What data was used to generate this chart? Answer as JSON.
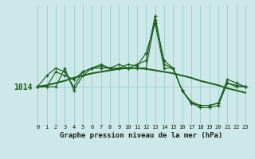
{
  "title": "Graphe pression niveau de la mer (hPa)",
  "bg_color": "#cce8e8",
  "grid_color": "#99cccc",
  "line_color": "#1a5c1a",
  "ylabel_value": 1014,
  "x_ticks": [
    0,
    1,
    2,
    3,
    4,
    5,
    6,
    7,
    8,
    9,
    10,
    11,
    12,
    13,
    14,
    15,
    16,
    17,
    18,
    19,
    20,
    21,
    22,
    23
  ],
  "ylim": [
    1009.0,
    1025.0
  ],
  "series": [
    [
      1014.0,
      1015.5,
      1016.5,
      1016.0,
      1014.0,
      1016.0,
      1016.5,
      1016.8,
      1016.5,
      1016.5,
      1017.0,
      1016.8,
      1018.5,
      1022.5,
      1016.5,
      1016.5,
      1013.5,
      1012.0,
      1011.5,
      1011.5,
      1011.8,
      1014.5,
      1014.2,
      1014.0
    ],
    [
      1014.0,
      1014.0,
      1014.0,
      1016.5,
      1013.5,
      1015.5,
      1016.5,
      1017.0,
      1016.5,
      1017.0,
      1016.5,
      1016.5,
      1016.5,
      1023.0,
      1017.5,
      1016.5,
      1013.5,
      1011.8,
      1011.2,
      1011.2,
      1011.5,
      1014.5,
      1014.0,
      1014.0
    ],
    [
      1014.0,
      1014.0,
      1016.0,
      1015.5,
      1015.0,
      1016.0,
      1016.5,
      1016.5,
      1016.5,
      1016.5,
      1016.5,
      1017.0,
      1017.5,
      1023.5,
      1017.0,
      1016.5,
      1013.5,
      1011.8,
      1011.5,
      1011.5,
      1011.8,
      1015.0,
      1014.5,
      1014.0
    ],
    [
      1014.0,
      1014.2,
      1014.5,
      1014.8,
      1015.2,
      1015.5,
      1015.8,
      1016.0,
      1016.2,
      1016.4,
      1016.5,
      1016.5,
      1016.4,
      1016.2,
      1016.0,
      1015.8,
      1015.5,
      1015.2,
      1014.8,
      1014.5,
      1014.2,
      1013.8,
      1013.5,
      1013.2
    ]
  ]
}
